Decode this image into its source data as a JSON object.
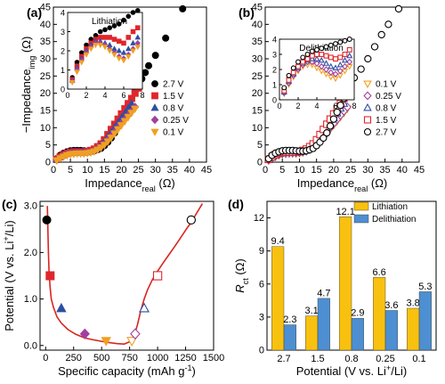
{
  "chart_data": [
    {
      "panel": "(a)",
      "type": "scatter",
      "xlabel": "Impedance_real (Ω)",
      "ylabel": "−Impedance_img (Ω)",
      "xlim": [
        0,
        45
      ],
      "ylim": [
        0,
        45
      ],
      "xticks": [
        0,
        5,
        10,
        15,
        20,
        25,
        30,
        35,
        40,
        45
      ],
      "yticks": [
        0,
        5,
        10,
        15,
        20,
        25,
        30,
        35,
        40,
        45
      ],
      "legend_position": "lower-right",
      "series": [
        {
          "name": "2.7 V",
          "marker": "circle",
          "filled": true,
          "color": "#000000",
          "x": [
            1,
            2,
            3,
            4,
            5,
            6,
            7,
            8,
            9,
            10,
            11,
            12,
            13,
            14,
            15,
            16,
            17,
            18,
            19,
            20,
            21,
            22,
            23,
            24,
            25,
            26,
            27,
            28,
            30,
            33,
            38
          ],
          "y": [
            1.0,
            2.0,
            2.6,
            3.0,
            3.3,
            3.4,
            3.4,
            3.4,
            3.3,
            3.2,
            3.2,
            3.3,
            3.6,
            4.0,
            4.8,
            5.8,
            7.0,
            8.5,
            10.5,
            12.5,
            14.5,
            16.5,
            18.5,
            20.5,
            22.5,
            24.2,
            26,
            28,
            31,
            36,
            44.5
          ]
        },
        {
          "name": "1.5 V",
          "marker": "square",
          "filled": true,
          "color": "#e0262b",
          "x": [
            1,
            2,
            3,
            4,
            5,
            6,
            7,
            8,
            9,
            10,
            11,
            12,
            13,
            14,
            15,
            16,
            17,
            18,
            19,
            20,
            21,
            22,
            23,
            24,
            25
          ],
          "y": [
            0.8,
            1.6,
            2.2,
            2.6,
            2.9,
            3.0,
            3.0,
            3.0,
            3.0,
            3.1,
            3.4,
            3.8,
            4.5,
            5.3,
            6.5,
            8,
            9.5,
            11,
            12.5,
            14,
            15.5,
            17,
            18.5,
            20,
            21.5
          ]
        },
        {
          "name": "0.8 V",
          "marker": "triangle-up",
          "filled": true,
          "color": "#2e4ea3",
          "x": [
            1,
            2,
            3,
            4,
            5,
            6,
            7,
            8,
            9,
            10,
            11,
            12,
            13,
            14,
            15,
            16,
            17,
            18,
            19,
            20,
            21,
            22,
            23
          ],
          "y": [
            0.7,
            1.4,
            2.0,
            2.4,
            2.7,
            2.8,
            2.8,
            2.8,
            2.8,
            2.9,
            3.1,
            3.5,
            4.1,
            5,
            6,
            7.3,
            8.6,
            10,
            11.4,
            12.8,
            14.2,
            15.6,
            17
          ]
        },
        {
          "name": "0.25 V",
          "marker": "diamond",
          "filled": true,
          "color": "#a23f9e",
          "x": [
            1,
            2,
            3,
            4,
            5,
            6,
            7,
            8,
            9,
            10,
            11,
            12,
            13,
            14,
            15,
            16,
            17,
            18,
            19,
            20,
            21,
            22,
            23,
            24
          ],
          "y": [
            0.6,
            1.2,
            1.8,
            2.2,
            2.5,
            2.6,
            2.7,
            2.7,
            2.7,
            2.8,
            3.0,
            3.3,
            3.8,
            4.5,
            5.3,
            6.4,
            7.6,
            8.8,
            10,
            11.2,
            12.4,
            13.6,
            14.8,
            16
          ]
        },
        {
          "name": "0.1 V",
          "marker": "triangle-down",
          "filled": true,
          "color": "#f0a020",
          "x": [
            1,
            2,
            3,
            4,
            5,
            6,
            7,
            8,
            9,
            10,
            11,
            12,
            13,
            14,
            15,
            16,
            17,
            18,
            19,
            20,
            21,
            22,
            23,
            24
          ],
          "y": [
            0.5,
            1.1,
            1.6,
            2.0,
            2.3,
            2.4,
            2.5,
            2.5,
            2.5,
            2.6,
            2.8,
            3.1,
            3.6,
            4.2,
            5,
            6,
            7.1,
            8.3,
            9.5,
            10.7,
            11.9,
            13.1,
            14.3,
            15.5
          ]
        }
      ],
      "inset": {
        "title": "Lithiation",
        "xlim": [
          0,
          8
        ],
        "ylim": [
          0,
          4
        ],
        "xticks": [
          0,
          2,
          4,
          6,
          8
        ],
        "yticks": [
          0,
          1,
          2,
          3,
          4
        ],
        "series_x": [
          0.5,
          1,
          1.5,
          2,
          2.5,
          3,
          3.5,
          4,
          4.5,
          5,
          5.5,
          6,
          6.5,
          7,
          7.5
        ],
        "series_y": {
          "2.7 V": [
            0.6,
            1.4,
            1.9,
            2.3,
            2.6,
            2.8,
            3.0,
            3.1,
            3.2,
            3.3,
            3.4,
            3.6,
            3.8,
            4.0,
            4.1
          ],
          "1.5 V": [
            0.5,
            1.2,
            1.7,
            2.1,
            2.4,
            2.6,
            2.7,
            2.7,
            2.7,
            2.6,
            2.5,
            2.4,
            2.7,
            3.0,
            3.2
          ],
          "0.8 V": [
            0.45,
            1.1,
            1.6,
            2.0,
            2.3,
            2.5,
            2.5,
            2.4,
            2.3,
            2.1,
            2.0,
            1.9,
            2.1,
            2.4,
            2.7
          ],
          "0.25 V": [
            0.4,
            1.0,
            1.5,
            1.9,
            2.2,
            2.4,
            2.4,
            2.3,
            2.1,
            1.9,
            1.7,
            1.6,
            1.8,
            2.1,
            2.4
          ],
          "0.1 V": [
            0.35,
            0.9,
            1.4,
            1.8,
            2.1,
            2.3,
            2.3,
            2.2,
            2.0,
            1.8,
            1.6,
            1.5,
            1.7,
            2.0,
            2.2
          ]
        }
      }
    },
    {
      "panel": "(b)",
      "type": "scatter",
      "xlabel": "Impedance_real (Ω)",
      "xlim": [
        0,
        45
      ],
      "ylim": [
        0,
        45
      ],
      "xticks": [
        0,
        5,
        10,
        15,
        20,
        25,
        30,
        35,
        40,
        45
      ],
      "yticks": [
        0,
        5,
        10,
        15,
        20,
        25,
        30,
        35,
        40,
        45
      ],
      "legend_position": "lower-right",
      "series": [
        {
          "name": "0.1 V",
          "marker": "triangle-down",
          "filled": false,
          "color": "#f0a020",
          "x": [
            1,
            2,
            3,
            4,
            5,
            6,
            7,
            8,
            9,
            10,
            11,
            12,
            13,
            14,
            15,
            16,
            17,
            18,
            19,
            20,
            21,
            22,
            23,
            24
          ],
          "y": [
            0.5,
            1.1,
            1.6,
            2.0,
            2.3,
            2.4,
            2.5,
            2.5,
            2.5,
            2.6,
            2.8,
            3.1,
            3.6,
            4.2,
            5,
            6,
            7.1,
            8.3,
            9.5,
            10.7,
            11.9,
            13.1,
            14.3,
            15.5
          ]
        },
        {
          "name": "0.25 V",
          "marker": "diamond",
          "filled": false,
          "color": "#a23f9e",
          "x": [
            1,
            2,
            3,
            4,
            5,
            6,
            7,
            8,
            9,
            10,
            11,
            12,
            13,
            14,
            15,
            16,
            17,
            18,
            19,
            20,
            21,
            22,
            23,
            24
          ],
          "y": [
            0.6,
            1.2,
            1.8,
            2.2,
            2.5,
            2.6,
            2.7,
            2.7,
            2.7,
            2.8,
            3.0,
            3.3,
            3.8,
            4.5,
            5.3,
            6.4,
            7.6,
            8.8,
            10,
            11.2,
            12.4,
            13.6,
            14.8,
            16
          ]
        },
        {
          "name": "0.8 V",
          "marker": "triangle-up",
          "filled": false,
          "color": "#2e4ea3",
          "x": [
            1,
            2,
            3,
            4,
            5,
            6,
            7,
            8,
            9,
            10,
            11,
            12,
            13,
            14,
            15,
            16,
            17,
            18,
            19,
            20,
            21,
            22,
            23
          ],
          "y": [
            0.7,
            1.4,
            2.0,
            2.4,
            2.7,
            2.8,
            2.8,
            2.8,
            2.8,
            2.9,
            3.1,
            3.5,
            4.1,
            5,
            6,
            7.3,
            8.6,
            10,
            11.4,
            12.8,
            14.2,
            15.6,
            17
          ]
        },
        {
          "name": "1.5 V",
          "marker": "square",
          "filled": false,
          "color": "#e0262b",
          "x": [
            1,
            2,
            3,
            4,
            5,
            6,
            7,
            8,
            9,
            10,
            11,
            12,
            13,
            14,
            15,
            16,
            17,
            18,
            19,
            20,
            21,
            22,
            23,
            24,
            25
          ],
          "y": [
            0.8,
            1.6,
            2.2,
            2.6,
            2.9,
            3.0,
            3.0,
            3.0,
            3.0,
            3.1,
            3.4,
            3.8,
            4.5,
            5.3,
            6.5,
            8,
            9.5,
            11,
            12.5,
            14,
            15.5,
            17,
            18.5,
            20,
            21.5
          ]
        },
        {
          "name": "2.7 V",
          "marker": "circle",
          "filled": false,
          "color": "#000000",
          "x": [
            1,
            2,
            3,
            4,
            5,
            6,
            7,
            8,
            9,
            10,
            11,
            12,
            13,
            14,
            15,
            16,
            17,
            18,
            19,
            20,
            21,
            22,
            23,
            24,
            25,
            26,
            28,
            30,
            32,
            34,
            36,
            39
          ],
          "y": [
            1.0,
            2.0,
            2.6,
            3.0,
            3.3,
            3.4,
            3.4,
            3.4,
            3.3,
            3.2,
            3.2,
            3.3,
            3.6,
            4.0,
            4.8,
            5.8,
            7.0,
            8.5,
            10.5,
            12.5,
            14.5,
            16.5,
            18.5,
            20.5,
            22.5,
            24.5,
            27,
            30,
            33.5,
            37,
            40,
            44.5
          ]
        }
      ],
      "inset": {
        "title": "Delithiation",
        "xlim": [
          0,
          8
        ],
        "ylim": [
          0,
          4
        ],
        "xticks": [
          0,
          2,
          4,
          6,
          8
        ],
        "yticks": [
          0,
          1,
          2,
          3,
          4
        ],
        "series_x": [
          0.5,
          1,
          1.5,
          2,
          2.5,
          3,
          3.5,
          4,
          4.5,
          5,
          5.5,
          6,
          6.5,
          7,
          7.5
        ],
        "series_y": {
          "2.7 V": [
            0.8,
            1.6,
            2.1,
            2.5,
            2.8,
            3.0,
            3.2,
            3.3,
            3.4,
            3.5,
            3.6,
            3.7,
            3.8,
            3.9,
            4.0
          ],
          "1.5 V": [
            0.6,
            1.3,
            1.8,
            2.2,
            2.5,
            2.7,
            2.9,
            3.0,
            3.0,
            2.9,
            2.8,
            2.7,
            2.8,
            3.0,
            3.3
          ],
          "0.8 V": [
            0.5,
            1.2,
            1.7,
            2.1,
            2.4,
            2.6,
            2.7,
            2.7,
            2.6,
            2.4,
            2.2,
            2.1,
            2.3,
            2.6,
            2.9
          ],
          "0.25 V": [
            0.45,
            1.1,
            1.6,
            2.0,
            2.3,
            2.5,
            2.5,
            2.4,
            2.2,
            2.0,
            1.8,
            1.7,
            1.9,
            2.2,
            2.5
          ],
          "0.1 V": [
            0.4,
            1.0,
            1.5,
            1.9,
            2.2,
            2.3,
            2.3,
            2.1,
            1.9,
            1.7,
            1.5,
            1.4,
            1.6,
            1.9,
            2.2
          ]
        }
      }
    },
    {
      "panel": "(c)",
      "type": "scatter",
      "xlabel": "Specific capacity (mAh g⁻¹)",
      "ylabel": "Potential (V vs. Li⁺/Li)",
      "xlim": [
        -50,
        1500
      ],
      "ylim": [
        -0.1,
        3.1
      ],
      "xticks": [
        0,
        250,
        500,
        750,
        1000,
        1250,
        1500
      ],
      "yticks": [
        0.0,
        1.0,
        2.0,
        3.0
      ],
      "curve": {
        "x": [
          15,
          20,
          25,
          30,
          40,
          50,
          70,
          100,
          140,
          200,
          270,
          350,
          430,
          500,
          570,
          640,
          700,
          750,
          790,
          820,
          850,
          880,
          910,
          950,
          1000,
          1050,
          1100,
          1150,
          1200,
          1250,
          1300,
          1350,
          1400
        ],
        "y": [
          3.0,
          2.5,
          2.0,
          1.6,
          1.25,
          1.0,
          0.82,
          0.62,
          0.48,
          0.34,
          0.24,
          0.16,
          0.12,
          0.09,
          0.06,
          0.04,
          0.03,
          0.08,
          0.2,
          0.45,
          0.75,
          1.0,
          1.2,
          1.4,
          1.6,
          1.78,
          1.95,
          2.12,
          2.3,
          2.48,
          2.65,
          2.85,
          3.05
        ]
      },
      "points": [
        {
          "x": 10,
          "y": 2.7,
          "marker": "circle",
          "filled": true,
          "color": "#000000"
        },
        {
          "x": 40,
          "y": 1.5,
          "marker": "square",
          "filled": true,
          "color": "#e0262b"
        },
        {
          "x": 140,
          "y": 0.8,
          "marker": "triangle-up",
          "filled": true,
          "color": "#2e4ea3"
        },
        {
          "x": 350,
          "y": 0.25,
          "marker": "diamond",
          "filled": true,
          "color": "#a23f9e"
        },
        {
          "x": 540,
          "y": 0.1,
          "marker": "triangle-down",
          "filled": true,
          "color": "#f0a020"
        },
        {
          "x": 770,
          "y": 0.1,
          "marker": "triangle-down",
          "filled": false,
          "color": "#f0a020"
        },
        {
          "x": 800,
          "y": 0.25,
          "marker": "diamond",
          "filled": false,
          "color": "#a23f9e"
        },
        {
          "x": 880,
          "y": 0.8,
          "marker": "triangle-up",
          "filled": false,
          "color": "#2e4ea3"
        },
        {
          "x": 1000,
          "y": 1.5,
          "marker": "square",
          "filled": false,
          "color": "#e0262b"
        },
        {
          "x": 1300,
          "y": 2.7,
          "marker": "circle",
          "filled": false,
          "color": "#000000"
        }
      ]
    },
    {
      "panel": "(d)",
      "type": "bar",
      "xlabel": "Potential (V vs. Li⁺/Li)",
      "ylabel": "R_ct (Ω)",
      "ylim": [
        0,
        13.5
      ],
      "yticks": [
        0,
        3,
        6,
        9,
        12
      ],
      "categories": [
        "2.7",
        "1.5",
        "0.8",
        "0.25",
        "0.1"
      ],
      "legend_position": "top-right",
      "series": [
        {
          "name": "Lithiation",
          "color": "#f9c10f",
          "values": [
            9.4,
            3.1,
            12.1,
            6.6,
            3.8
          ],
          "labels": [
            "9.4",
            "3.1",
            "12.1",
            "6.6",
            "3.8"
          ]
        },
        {
          "name": "Delithiation",
          "color": "#4d8fd1",
          "values": [
            2.3,
            4.7,
            2.9,
            3.6,
            5.3
          ],
          "labels": [
            "2.3",
            "4.7",
            "2.9",
            "3.6",
            "5.3"
          ]
        }
      ]
    }
  ]
}
